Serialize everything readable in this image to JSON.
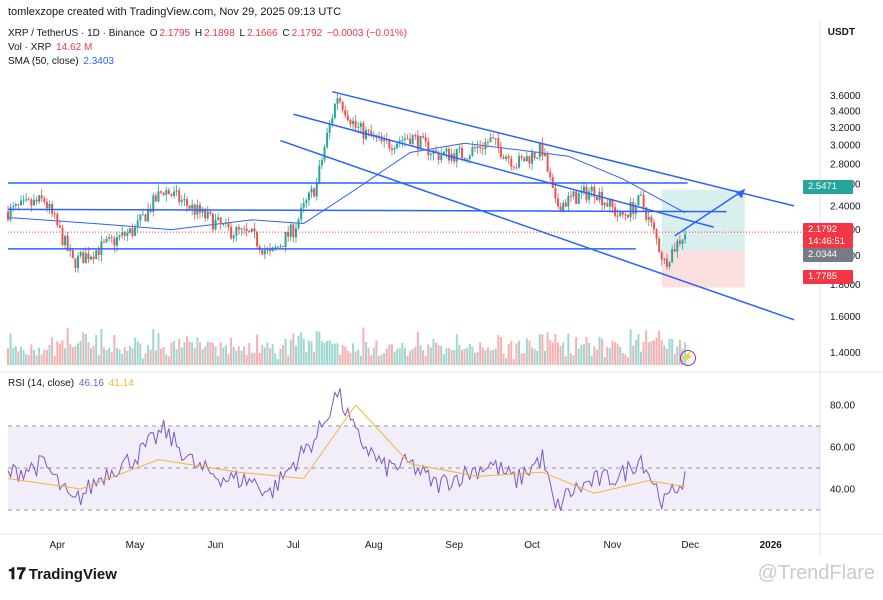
{
  "header": {
    "credit": "tomlexzope created with TradingView.com, Nov 29, 2025 09:13 UTC",
    "symbol": "XRP / TetherUS · 1D · Binance",
    "ohlc": {
      "o_label": "O",
      "o": "2.1795",
      "h_label": "H",
      "h": "2.1898",
      "l_label": "L",
      "l": "2.1666",
      "c_label": "C",
      "c": "2.1792",
      "change": "−0.0003 (−0.01%)"
    },
    "volume": {
      "label": "Vol · XRP",
      "value": "14.62 M"
    },
    "sma": {
      "label": "SMA (50, close)",
      "value": "2.3403"
    },
    "currency": "USDT"
  },
  "rsi_legend": {
    "label": "RSI (14, close)",
    "value": "46.16",
    "ma_value": "41.14"
  },
  "price_badges": {
    "target": "2.5471",
    "current_price": "2.1792",
    "countdown": "14:46:51",
    "entry": "2.0344",
    "stop": "1.7785"
  },
  "colors": {
    "up": "#26a69a",
    "down": "#ef5350",
    "trendline": "#2962ff",
    "sma": "#2962ff",
    "rsi": "#7e57c2",
    "rsi_ma": "#f0b43c",
    "target_zone": "#26a69a",
    "stop_zone": "#ef5350"
  },
  "branding": {
    "logo_text": "TradingView",
    "watermark_text": "@TrendFlare"
  },
  "icons": {
    "flash": "lightning-icon",
    "logo": "tradingview-logo-icon"
  },
  "chart_data": [
    {
      "type": "line",
      "title": "XRP / TetherUS · 1D · Binance",
      "x_axis_labels": [
        "Apr",
        "May",
        "Jun",
        "Jul",
        "Aug",
        "Sep",
        "Oct",
        "Nov",
        "Dec",
        "2026"
      ],
      "y_axis_ticks": [
        "3.6000",
        "3.4000",
        "3.2000",
        "3.0000",
        "2.8000",
        "2.6000",
        "2.4000",
        "2.2000",
        "2.0000",
        "1.8000",
        "1.6000",
        "1.4000",
        "1.2000"
      ],
      "scale": "log",
      "ylim": [
        1.1,
        3.75
      ],
      "series": [
        {
          "name": "XRP / TetherUS",
          "x": [
            "2025-03-13",
            "2025-03-27",
            "2025-04-07",
            "2025-04-20",
            "2025-05-01",
            "2025-05-12",
            "2025-05-25",
            "2025-06-05",
            "2025-06-15",
            "2025-06-22",
            "2025-07-01",
            "2025-07-10",
            "2025-07-18",
            "2025-07-25",
            "2025-08-05",
            "2025-08-15",
            "2025-08-25",
            "2025-09-05",
            "2025-09-15",
            "2025-09-25",
            "2025-10-05",
            "2025-10-10",
            "2025-10-15",
            "2025-10-25",
            "2025-11-04",
            "2025-11-12",
            "2025-11-21",
            "2025-11-29"
          ],
          "values": [
            2.35,
            2.45,
            1.95,
            2.08,
            2.2,
            2.55,
            2.35,
            2.2,
            2.15,
            2.0,
            2.2,
            2.6,
            3.6,
            3.2,
            3.0,
            3.1,
            2.9,
            2.9,
            3.05,
            2.8,
            2.95,
            2.4,
            2.45,
            2.55,
            2.3,
            2.45,
            1.95,
            2.18
          ]
        },
        {
          "name": "SMA (50, close)",
          "x": [
            "2025-03-13",
            "2025-04-15",
            "2025-05-15",
            "2025-06-15",
            "2025-07-05",
            "2025-07-25",
            "2025-08-15",
            "2025-09-05",
            "2025-09-25",
            "2025-10-15",
            "2025-11-05",
            "2025-11-29"
          ],
          "values": [
            2.3,
            2.25,
            2.2,
            2.28,
            2.25,
            2.55,
            2.92,
            3.02,
            2.95,
            2.88,
            2.65,
            2.34
          ]
        }
      ],
      "trendlines": [
        {
          "name": "upper channel",
          "from": [
            "2025-07-16",
            3.65
          ],
          "to": [
            "2026-01-10",
            2.4
          ]
        },
        {
          "name": "middle channel",
          "from": [
            "2025-07-01",
            3.36
          ],
          "to": [
            "2025-12-10",
            2.22
          ]
        },
        {
          "name": "lower channel",
          "from": [
            "2025-06-26",
            3.05
          ],
          "to": [
            "2026-01-10",
            1.58
          ]
        },
        {
          "name": "horizontal resistance",
          "from": [
            "2025-03-13",
            2.61
          ],
          "to": [
            "2025-11-30",
            2.61
          ]
        },
        {
          "name": "horizontal mid",
          "from": [
            "2025-03-13",
            2.37
          ],
          "to": [
            "2025-12-15",
            2.35
          ]
        },
        {
          "name": "horizontal support",
          "from": [
            "2025-03-13",
            2.05
          ],
          "to": [
            "2025-11-10",
            2.05
          ]
        }
      ],
      "position": {
        "target": 2.5471,
        "entry": 2.0344,
        "stop": 1.7785,
        "current": 2.1792
      }
    },
    {
      "type": "line",
      "title": "RSI (14, close)",
      "y_axis_ticks": [
        "80.00",
        "60.00",
        "40.00"
      ],
      "ylim": [
        22,
        92
      ],
      "bands": [
        70,
        50,
        30
      ],
      "series": [
        {
          "name": "RSI (14, close)",
          "x": [
            "2025-03-13",
            "2025-03-27",
            "2025-04-07",
            "2025-04-20",
            "2025-05-01",
            "2025-05-12",
            "2025-05-25",
            "2025-06-05",
            "2025-06-15",
            "2025-06-22",
            "2025-07-01",
            "2025-07-10",
            "2025-07-18",
            "2025-07-25",
            "2025-08-05",
            "2025-08-15",
            "2025-08-25",
            "2025-09-05",
            "2025-09-15",
            "2025-09-25",
            "2025-10-05",
            "2025-10-10",
            "2025-10-15",
            "2025-10-25",
            "2025-11-04",
            "2025-11-12",
            "2025-11-21",
            "2025-11-29"
          ],
          "values": [
            47,
            52,
            33,
            48,
            55,
            68,
            50,
            45,
            44,
            38,
            52,
            65,
            86,
            66,
            50,
            52,
            42,
            47,
            52,
            44,
            55,
            30,
            38,
            44,
            46,
            55,
            33,
            46.16
          ]
        },
        {
          "name": "RSI-based MA",
          "x": [
            "2025-03-13",
            "2025-04-10",
            "2025-05-10",
            "2025-06-10",
            "2025-07-05",
            "2025-07-25",
            "2025-08-15",
            "2025-09-10",
            "2025-10-05",
            "2025-10-25",
            "2025-11-15",
            "2025-11-29"
          ],
          "values": [
            45,
            40,
            54,
            48,
            45,
            80,
            52,
            46,
            48,
            38,
            44,
            41.14
          ]
        }
      ]
    }
  ]
}
